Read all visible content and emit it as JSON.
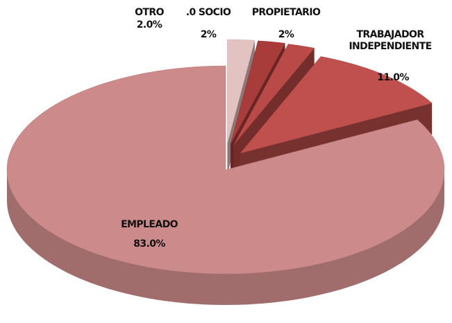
{
  "chart_data": {
    "type": "pie3d",
    "categories": [
      "OTRO",
      ".0 SOCIO",
      "PROPIETARIO",
      "TRABAJADOR INDEPENDIENTE",
      "EMPLEADO"
    ],
    "values": [
      2.0,
      2,
      2,
      11.0,
      83.0
    ],
    "value_labels": [
      "2.0%",
      "2%",
      "2%",
      "11.0%",
      "83.0%"
    ],
    "colors": [
      "#e3c2c2",
      "#a83c3a",
      "#b94a47",
      "#c0504d",
      "#cd8a8a"
    ]
  }
}
